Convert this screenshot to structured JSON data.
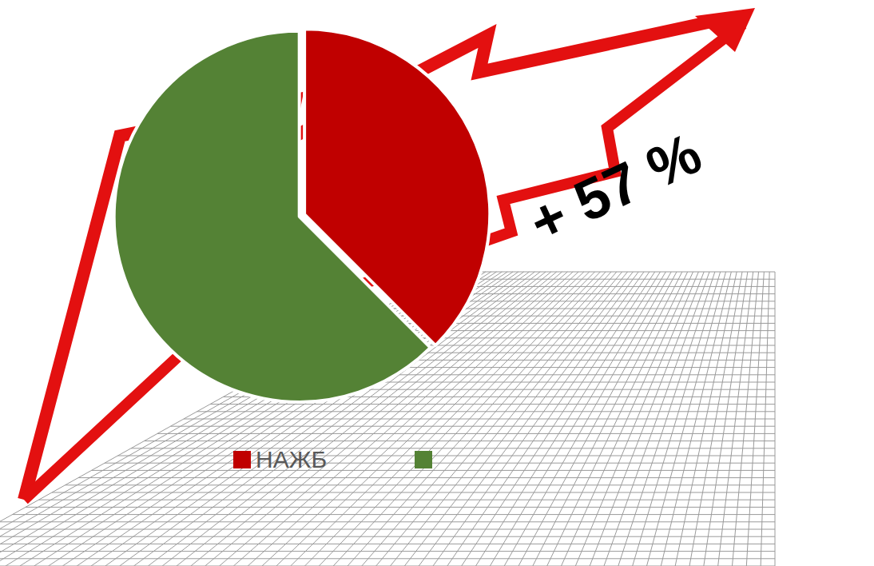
{
  "chart_data": {
    "type": "pie",
    "categories": [
      "НАЖБ",
      null
    ],
    "values": [
      37.5,
      62.5
    ],
    "colors": [
      "#c00000",
      "#548235"
    ],
    "legend": "bottom",
    "data_labels": false,
    "annotations": [
      "+ 57 %"
    ]
  }
}
